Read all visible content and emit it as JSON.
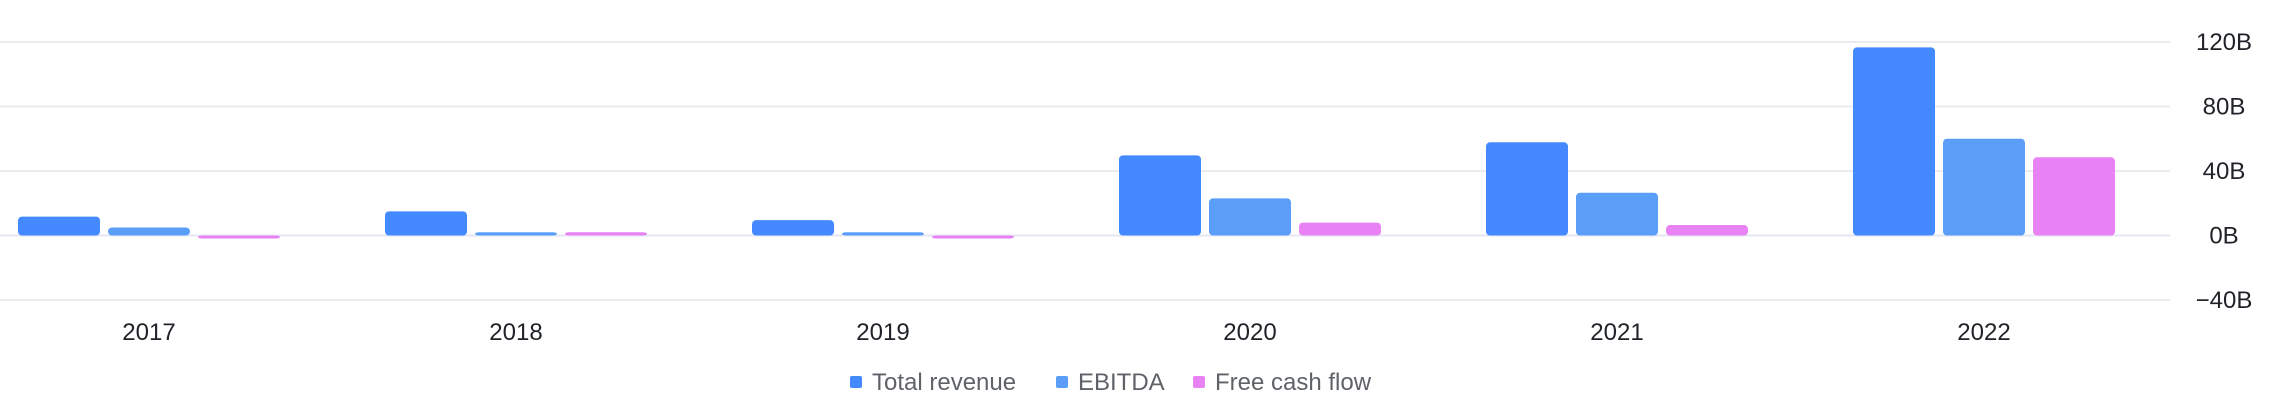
{
  "chart_data": {
    "type": "bar",
    "categories": [
      "2017",
      "2018",
      "2019",
      "2020",
      "2021",
      "2022"
    ],
    "series": [
      {
        "name": "Total revenue",
        "color": "#4589ff",
        "values": [
          11.7,
          15.0,
          9.5,
          49.7,
          57.8,
          116.7
        ]
      },
      {
        "name": "EBITDA",
        "color": "#5b9ef7",
        "values": [
          5.0,
          2.0,
          2.0,
          23.0,
          26.5,
          60.0
        ]
      },
      {
        "name": "Free cash flow",
        "color": "#e882f5",
        "values": [
          -1.8,
          2.0,
          -1.2,
          8.0,
          6.5,
          48.5
        ]
      }
    ],
    "ylim": [
      -40,
      120
    ],
    "yticks": [
      -40,
      0,
      40,
      80,
      120
    ],
    "ytick_labels": [
      "−40B",
      "0B",
      "40B",
      "80B",
      "120B"
    ],
    "grid": true,
    "legend_position": "bottom-center",
    "title": "",
    "xlabel": "",
    "ylabel": ""
  }
}
